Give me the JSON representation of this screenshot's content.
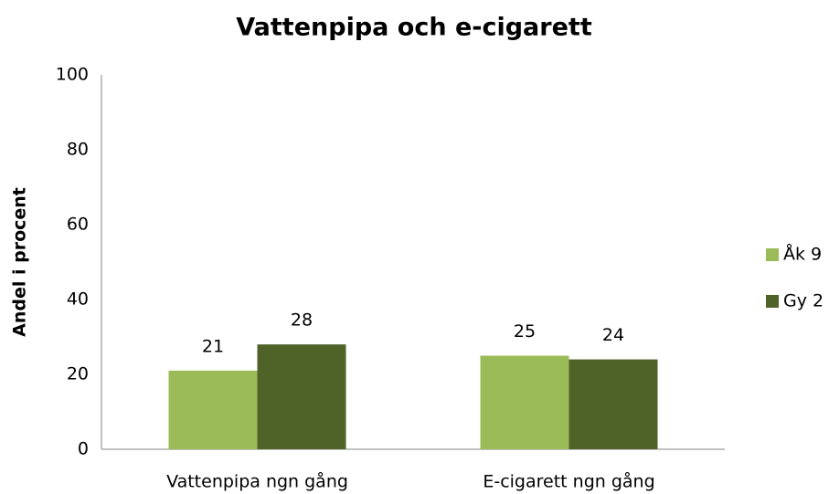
{
  "chart_data": {
    "type": "bar",
    "title": "Vattenpipa och e-cigarett",
    "y_label": "Andel i procent",
    "categories": [
      "Vattenpipa ngn gång",
      "E-cigarett ngn gång"
    ],
    "series": [
      {
        "name": "Åk 9",
        "color": "#9bbb59",
        "values": [
          21,
          25
        ]
      },
      {
        "name": "Gy 2",
        "color": "#4f6228",
        "values": [
          28,
          24
        ]
      }
    ],
    "ylim": [
      0,
      100
    ],
    "yticks": [
      0,
      20,
      40,
      60,
      80,
      100
    ],
    "grid": false,
    "legend": "right"
  }
}
